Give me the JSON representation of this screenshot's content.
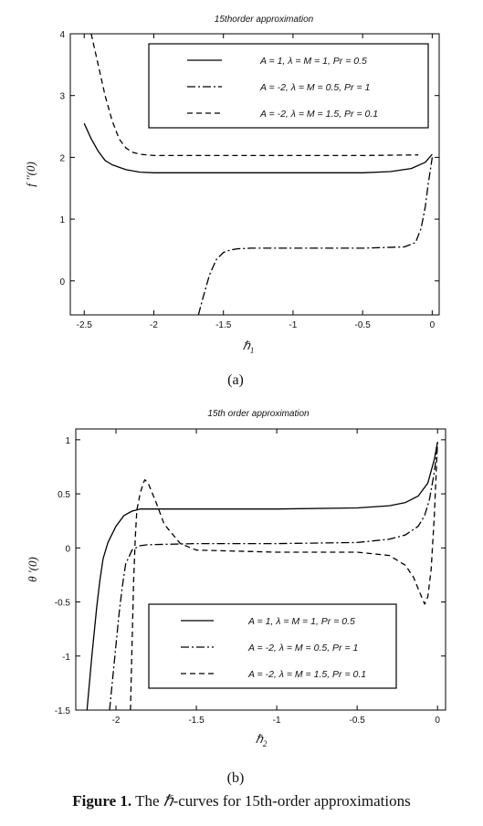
{
  "chart_data": [
    {
      "type": "line",
      "title": "15thorder approximation",
      "xlabel": "ℏ",
      "xlabel_sub": "1",
      "ylabel": "f ''(0)",
      "xlim": [
        -2.6,
        0.05
      ],
      "ylim": [
        -0.55,
        4.0
      ],
      "xticks": [
        -2.5,
        -2,
        -1.5,
        -1,
        -0.5,
        0
      ],
      "xtick_labels": [
        "-2.5",
        "-2",
        "-1.5",
        "-1",
        "-0.5",
        "0"
      ],
      "yticks": [
        0,
        1,
        2,
        3,
        4
      ],
      "ytick_labels": [
        "0",
        "1",
        "2",
        "3",
        "4"
      ],
      "legend_position": "top-right",
      "series": [
        {
          "name": "A = 1, λ = M = 1, Pr = 0.5",
          "dash": "solid",
          "x": [
            -2.5,
            -2.45,
            -2.4,
            -2.35,
            -2.3,
            -2.2,
            -2.1,
            -2.0,
            -1.5,
            -1.0,
            -0.5,
            -0.3,
            -0.15,
            -0.05,
            0.0
          ],
          "y": [
            2.55,
            2.3,
            2.1,
            1.95,
            1.88,
            1.8,
            1.76,
            1.75,
            1.75,
            1.75,
            1.75,
            1.77,
            1.82,
            1.92,
            2.05
          ]
        },
        {
          "name": "A = -2, λ = M = 0.5, Pr = 1",
          "dash": "dashdot",
          "x": [
            -1.68,
            -1.65,
            -1.6,
            -1.55,
            -1.5,
            -1.45,
            -1.4,
            -1.3,
            -1.0,
            -0.5,
            -0.2,
            -0.12,
            -0.08,
            -0.05,
            -0.03,
            -0.01,
            0.0
          ],
          "y": [
            -0.55,
            -0.3,
            0.1,
            0.35,
            0.46,
            0.5,
            0.52,
            0.53,
            0.53,
            0.53,
            0.55,
            0.62,
            0.85,
            1.2,
            1.55,
            1.85,
            2.0
          ]
        },
        {
          "name": "A = -2, λ = M = 1.5, Pr = 0.1",
          "dash": "dashed",
          "x": [
            -2.45,
            -2.4,
            -2.35,
            -2.3,
            -2.25,
            -2.2,
            -2.15,
            -2.1,
            -2.0,
            -1.5,
            -1.0,
            -0.5,
            -0.1
          ],
          "y": [
            4.0,
            3.5,
            3.0,
            2.6,
            2.3,
            2.15,
            2.08,
            2.05,
            2.03,
            2.03,
            2.03,
            2.03,
            2.04
          ]
        }
      ]
    },
    {
      "type": "line",
      "title": "15th order approximation",
      "xlabel": "ℏ",
      "xlabel_sub": "2",
      "ylabel": "θ '(0)",
      "xlim": [
        -2.25,
        0.05
      ],
      "ylim": [
        -1.5,
        1.1
      ],
      "xticks": [
        -2,
        -1.5,
        -1,
        -0.5,
        0
      ],
      "xtick_labels": [
        "-2",
        "-1.5",
        "-1",
        "-0.5",
        "0"
      ],
      "yticks": [
        -1.5,
        -1,
        -0.5,
        0,
        0.5,
        1
      ],
      "ytick_labels": [
        "-1.5",
        "-1",
        "-0.5",
        "0",
        "0.5",
        "1"
      ],
      "legend_position": "bottom-right",
      "series": [
        {
          "name": "A = 1, λ = M = 1, Pr = 0.5",
          "dash": "solid",
          "x": [
            -2.18,
            -2.15,
            -2.12,
            -2.1,
            -2.08,
            -2.05,
            -2.0,
            -1.95,
            -1.9,
            -1.85,
            -1.8,
            -1.5,
            -1.0,
            -0.5,
            -0.3,
            -0.2,
            -0.12,
            -0.06,
            -0.02,
            0.0
          ],
          "y": [
            -1.5,
            -1.0,
            -0.55,
            -0.3,
            -0.1,
            0.05,
            0.2,
            0.3,
            0.34,
            0.36,
            0.36,
            0.36,
            0.36,
            0.37,
            0.39,
            0.42,
            0.48,
            0.6,
            0.82,
            0.98
          ]
        },
        {
          "name": "A = -2, λ = M = 0.5, Pr = 1",
          "dash": "dashdot",
          "x": [
            -2.04,
            -2.02,
            -2.0,
            -1.98,
            -1.96,
            -1.94,
            -1.9,
            -1.85,
            -1.8,
            -1.5,
            -1.0,
            -0.5,
            -0.3,
            -0.2,
            -0.12,
            -0.08,
            -0.05,
            -0.02,
            0.0
          ],
          "y": [
            -1.5,
            -1.2,
            -0.9,
            -0.6,
            -0.35,
            -0.15,
            -0.02,
            0.02,
            0.03,
            0.04,
            0.04,
            0.05,
            0.08,
            0.12,
            0.2,
            0.3,
            0.45,
            0.7,
            0.95
          ]
        },
        {
          "name": "A = -2, λ = M = 1.5, Pr = 0.1",
          "dash": "dashed",
          "x": [
            -1.91,
            -1.9,
            -1.89,
            -1.88,
            -1.87,
            -1.85,
            -1.83,
            -1.82,
            -1.8,
            -1.75,
            -1.7,
            -1.6,
            -1.5,
            -1.0,
            -0.5,
            -0.3,
            -0.2,
            -0.15,
            -0.12,
            -0.1,
            -0.08,
            -0.06,
            -0.04,
            -0.02,
            0.0
          ],
          "y": [
            -1.5,
            -0.9,
            -0.3,
            0.1,
            0.35,
            0.5,
            0.6,
            0.63,
            0.6,
            0.42,
            0.22,
            0.04,
            -0.02,
            -0.04,
            -0.04,
            -0.07,
            -0.16,
            -0.27,
            -0.38,
            -0.45,
            -0.52,
            -0.45,
            -0.2,
            0.3,
            0.98
          ]
        }
      ]
    }
  ],
  "panel_labels": [
    "(a)",
    "(b)"
  ],
  "caption": {
    "label": "Figure 1.",
    "hbar": "ℏ",
    "text": "-curves for 15th-order approximations",
    "the": "The"
  }
}
